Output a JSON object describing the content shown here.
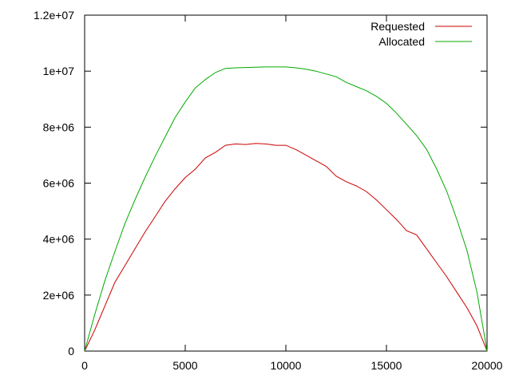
{
  "chart_data": {
    "type": "line",
    "xlim": [
      0,
      20000
    ],
    "ylim": [
      0,
      12000000
    ],
    "x_ticks": [
      {
        "value": 0,
        "label": "0"
      },
      {
        "value": 5000,
        "label": "5000"
      },
      {
        "value": 10000,
        "label": "10000"
      },
      {
        "value": 15000,
        "label": "15000"
      },
      {
        "value": 20000,
        "label": "20000"
      }
    ],
    "y_ticks": [
      {
        "value": 0,
        "label": "0"
      },
      {
        "value": 2000000,
        "label": "2e+06"
      },
      {
        "value": 4000000,
        "label": "4e+06"
      },
      {
        "value": 6000000,
        "label": "6e+06"
      },
      {
        "value": 8000000,
        "label": "8e+06"
      },
      {
        "value": 10000000,
        "label": "1e+07"
      },
      {
        "value": 12000000,
        "label": "1.2e+07"
      }
    ],
    "grid": false,
    "legend": "top-right",
    "series": [
      {
        "name": "Requested",
        "color": "#cc0000",
        "x": [
          0,
          500,
          1000,
          1500,
          2000,
          2500,
          3000,
          3500,
          4000,
          4500,
          5000,
          5500,
          6000,
          6500,
          7000,
          7500,
          8000,
          8500,
          9000,
          9500,
          10000,
          10500,
          11000,
          11500,
          12000,
          12500,
          13000,
          13500,
          14000,
          14500,
          15000,
          15500,
          16000,
          16500,
          17000,
          17500,
          18000,
          18500,
          19000,
          19500,
          20000
        ],
        "y": [
          0,
          750000,
          1600000,
          2450000,
          3050000,
          3650000,
          4250000,
          4800000,
          5350000,
          5800000,
          6200000,
          6500000,
          6900000,
          7100000,
          7350000,
          7400000,
          7380000,
          7420000,
          7400000,
          7350000,
          7350000,
          7200000,
          7000000,
          6800000,
          6600000,
          6250000,
          6050000,
          5900000,
          5700000,
          5400000,
          5050000,
          4700000,
          4300000,
          4150000,
          3650000,
          3150000,
          2650000,
          2100000,
          1550000,
          900000,
          0
        ]
      },
      {
        "name": "Allocated",
        "color": "#00aa00",
        "x": [
          0,
          500,
          1000,
          1500,
          2000,
          2500,
          3000,
          3500,
          4000,
          4500,
          5000,
          5500,
          6000,
          6500,
          7000,
          7500,
          8000,
          8500,
          9000,
          9500,
          10000,
          10500,
          11000,
          11500,
          12000,
          12500,
          13000,
          13500,
          14000,
          14500,
          15000,
          15500,
          16000,
          16500,
          17000,
          17500,
          18000,
          18500,
          19000,
          19500,
          20000
        ],
        "y": [
          0,
          1300000,
          2500000,
          3550000,
          4550000,
          5400000,
          6200000,
          6950000,
          7650000,
          8350000,
          8900000,
          9400000,
          9700000,
          9950000,
          10100000,
          10120000,
          10130000,
          10140000,
          10150000,
          10150000,
          10150000,
          10120000,
          10070000,
          10000000,
          9900000,
          9800000,
          9600000,
          9450000,
          9300000,
          9100000,
          8850000,
          8500000,
          8100000,
          7700000,
          7200000,
          6500000,
          5700000,
          4700000,
          3600000,
          2100000,
          0
        ]
      }
    ]
  }
}
